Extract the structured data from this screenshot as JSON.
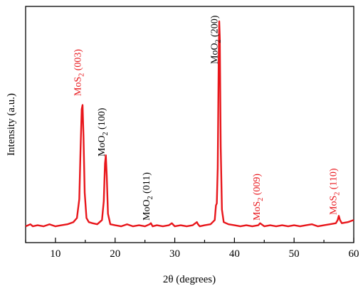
{
  "chart_data": {
    "type": "line",
    "xlabel": "2θ (degrees)",
    "ylabel": "Intensity (a.u.)",
    "xlim": [
      5,
      60
    ],
    "ylim": [
      0,
      1.0
    ],
    "x_ticks": [
      10,
      20,
      30,
      40,
      50,
      60
    ],
    "y_ticks_visible": false,
    "grid": false,
    "legend": "none",
    "series": [
      {
        "color": "#e8161b",
        "x": [
          5,
          5.8,
          6.2,
          7,
          8,
          9,
          10,
          11,
          12,
          13,
          13.6,
          14.0,
          14.2,
          14.4,
          14.55,
          14.7,
          14.9,
          15.2,
          15.6,
          16.2,
          17,
          17.8,
          18.1,
          18.3,
          18.45,
          18.6,
          18.8,
          19.2,
          20,
          21,
          22,
          23,
          24,
          25,
          25.8,
          26,
          26.3,
          27,
          28,
          29,
          29.5,
          30,
          31,
          32,
          33,
          33.7,
          33.9,
          34.2,
          35,
          36,
          36.7,
          36.9,
          37.05,
          37.2,
          37.35,
          37.45,
          37.55,
          37.7,
          37.9,
          38.2,
          39,
          40,
          41,
          42,
          43,
          44,
          44.3,
          45,
          46,
          47,
          48,
          49,
          50,
          51,
          52,
          53,
          54,
          55,
          56,
          57,
          57.3,
          57.5,
          57.7,
          58,
          59,
          60
        ],
        "y": [
          0.02,
          0.03,
          0.02,
          0.025,
          0.02,
          0.03,
          0.02,
          0.025,
          0.03,
          0.04,
          0.06,
          0.15,
          0.38,
          0.58,
          0.6,
          0.45,
          0.18,
          0.06,
          0.04,
          0.035,
          0.03,
          0.05,
          0.14,
          0.32,
          0.36,
          0.26,
          0.08,
          0.03,
          0.025,
          0.02,
          0.03,
          0.02,
          0.025,
          0.02,
          0.03,
          0.035,
          0.02,
          0.025,
          0.02,
          0.025,
          0.035,
          0.02,
          0.025,
          0.02,
          0.025,
          0.04,
          0.03,
          0.02,
          0.025,
          0.03,
          0.05,
          0.12,
          0.13,
          0.3,
          0.8,
          1.0,
          0.92,
          0.4,
          0.1,
          0.04,
          0.03,
          0.025,
          0.02,
          0.025,
          0.02,
          0.025,
          0.035,
          0.02,
          0.025,
          0.02,
          0.025,
          0.02,
          0.025,
          0.02,
          0.025,
          0.03,
          0.02,
          0.025,
          0.03,
          0.035,
          0.05,
          0.07,
          0.05,
          0.035,
          0.04,
          0.05
        ]
      }
    ],
    "annotations": [
      {
        "compound": "MoS",
        "sub": "2",
        "hkl": " (003)",
        "x": 14.5,
        "color": "#e8161b"
      },
      {
        "compound": "MoO",
        "sub": "2",
        "hkl": " (100)",
        "x": 18.5,
        "color": "#000000"
      },
      {
        "compound": "MoO",
        "sub": "2",
        "hkl": " (011)",
        "x": 26.0,
        "color": "#000000"
      },
      {
        "compound": "MoO",
        "sub": "2",
        "hkl": " (200)",
        "x": 37.4,
        "color": "#000000"
      },
      {
        "compound": "MoS",
        "sub": "2",
        "hkl": " (009)",
        "x": 44.5,
        "color": "#e8161b"
      },
      {
        "compound": "MoS",
        "sub": "2",
        "hkl": " (110)",
        "x": 57.3,
        "color": "#e8161b"
      }
    ]
  }
}
